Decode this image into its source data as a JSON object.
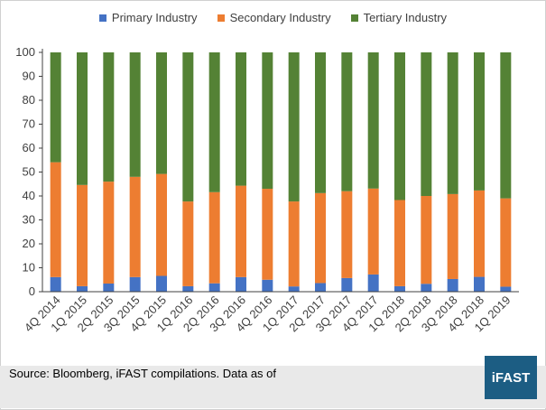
{
  "chart_data": {
    "type": "bar",
    "stacked": true,
    "categories": [
      "4Q 2014",
      "1Q 2015",
      "2Q 2015",
      "3Q 2015",
      "4Q 2015",
      "1Q 2016",
      "2Q 2016",
      "3Q 2016",
      "4Q 2016",
      "1Q 2017",
      "2Q 2017",
      "3Q 2017",
      "4Q 2017",
      "1Q 2018",
      "2Q 2018",
      "3Q 2018",
      "4Q 2018",
      "1Q 2019"
    ],
    "series": [
      {
        "name": "Primary Industry",
        "color": "#4472c4",
        "values": [
          6.1,
          2.3,
          3.4,
          6.1,
          6.6,
          2.3,
          3.5,
          6.1,
          5.0,
          2.2,
          3.6,
          5.7,
          7.2,
          2.3,
          3.3,
          5.3,
          6.2,
          2.1
        ]
      },
      {
        "name": "Secondary Industry",
        "color": "#ed7d31",
        "values": [
          48.0,
          42.3,
          42.6,
          41.9,
          42.6,
          35.4,
          38.1,
          38.2,
          38.0,
          35.5,
          37.6,
          36.3,
          35.9,
          36.0,
          36.7,
          35.5,
          36.1,
          36.9
        ]
      },
      {
        "name": "Tertiary Industry",
        "color": "#548235",
        "values": [
          45.9,
          55.4,
          54.0,
          52.0,
          50.8,
          62.3,
          58.4,
          55.7,
          57.0,
          62.3,
          58.8,
          58.0,
          56.9,
          61.7,
          60.0,
          59.2,
          57.7,
          61.0
        ]
      }
    ],
    "ylim": [
      0,
      100
    ],
    "yticks": [
      0,
      10,
      20,
      30,
      40,
      50,
      60,
      70,
      80,
      90,
      100
    ],
    "grid": false,
    "legend": "top"
  },
  "footer": {
    "source": "Source: Bloomberg, iFAST compilations. Data as of",
    "logo": "iFAST"
  }
}
